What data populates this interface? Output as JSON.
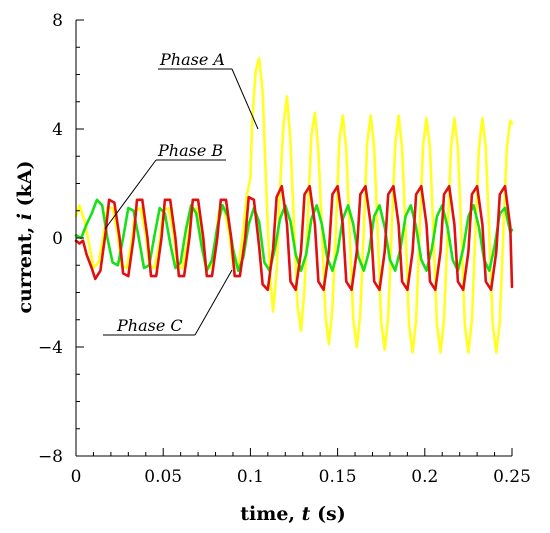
{
  "chart_data": {
    "type": "line",
    "title": "",
    "xlabel": {
      "prefix": "time, ",
      "var": "t",
      "suffix": " (s)"
    },
    "ylabel": {
      "prefix": "current, ",
      "var": "i",
      "suffix": " (kA)"
    },
    "xlim": [
      0,
      0.25
    ],
    "ylim": [
      -8,
      8
    ],
    "xticks": [
      0,
      0.05,
      0.1,
      0.15,
      0.2,
      0.25
    ],
    "xtick_labels": [
      "0",
      "0.05",
      "0.1",
      "0.15",
      "0.2",
      "0.25"
    ],
    "yticks": [
      -8,
      -4,
      0,
      4,
      8
    ],
    "ytick_labels": [
      "−8",
      "−4",
      "0",
      "4",
      "8"
    ],
    "grid": false,
    "legend": "none",
    "annotations": [
      {
        "text": "Phase A",
        "target_series": 0
      },
      {
        "text": "Phase B",
        "target_series": 1
      },
      {
        "text": "Phase C",
        "target_series": 2
      }
    ],
    "series": [
      {
        "name": "Phase A",
        "color": "#ffff22",
        "x": [
          0,
          0.002,
          0.005,
          0.008,
          0.01,
          0.013,
          0.016,
          0.018,
          0.021,
          0.024,
          0.026,
          0.029,
          0.032,
          0.034,
          0.037,
          0.04,
          0.042,
          0.045,
          0.048,
          0.05,
          0.053,
          0.056,
          0.058,
          0.061,
          0.064,
          0.066,
          0.069,
          0.072,
          0.074,
          0.077,
          0.08,
          0.082,
          0.085,
          0.088,
          0.09,
          0.093,
          0.096,
          0.098,
          0.1,
          0.101,
          0.103,
          0.105,
          0.107,
          0.109,
          0.111,
          0.113,
          0.115,
          0.117,
          0.119,
          0.121,
          0.123,
          0.125,
          0.127,
          0.129,
          0.131,
          0.133,
          0.135,
          0.137,
          0.139,
          0.141,
          0.143,
          0.145,
          0.147,
          0.149,
          0.151,
          0.153,
          0.155,
          0.157,
          0.159,
          0.161,
          0.163,
          0.165,
          0.167,
          0.169,
          0.171,
          0.173,
          0.175,
          0.177,
          0.179,
          0.181,
          0.183,
          0.185,
          0.187,
          0.189,
          0.191,
          0.193,
          0.195,
          0.197,
          0.199,
          0.201,
          0.203,
          0.205,
          0.207,
          0.209,
          0.211,
          0.213,
          0.215,
          0.217,
          0.219,
          0.221,
          0.223,
          0.225,
          0.227,
          0.229,
          0.231,
          0.233,
          0.235,
          0.237,
          0.239,
          0.241,
          0.243,
          0.245,
          0.247,
          0.249,
          0.25
        ],
        "y": [
          0.8,
          1.2,
          0.6,
          -0.4,
          -1.1,
          -0.9,
          0.2,
          1.1,
          1.1,
          0.1,
          -1.0,
          -1.1,
          -0.1,
          1.0,
          1.1,
          0.1,
          -1.0,
          -1.1,
          -0.1,
          1.0,
          1.1,
          0.1,
          -1.0,
          -1.1,
          -0.1,
          1.0,
          1.1,
          0.1,
          -1.0,
          -1.1,
          -0.1,
          1.0,
          1.1,
          0.1,
          -1.0,
          -1.1,
          0.3,
          1.6,
          2.2,
          4.2,
          6.1,
          6.6,
          5.4,
          2.0,
          -1.2,
          -2.7,
          -1.2,
          1.8,
          4.2,
          5.2,
          3.5,
          0.4,
          -2.5,
          -3.4,
          -1.9,
          1.0,
          3.8,
          4.6,
          3.2,
          0.3,
          -2.8,
          -3.9,
          -2.6,
          0.4,
          3.6,
          4.5,
          3.2,
          0.1,
          -3.0,
          -4.0,
          -2.8,
          0.3,
          3.5,
          4.5,
          3.3,
          0.2,
          -3.1,
          -4.1,
          -2.9,
          0.3,
          3.4,
          4.5,
          3.3,
          0.2,
          -3.2,
          -4.2,
          -3.0,
          0.2,
          3.4,
          4.4,
          3.3,
          0.1,
          -3.2,
          -4.2,
          -3.0,
          0.2,
          3.3,
          4.4,
          3.3,
          0.1,
          -3.2,
          -4.2,
          -3.0,
          0.2,
          3.3,
          4.4,
          3.3,
          0.1,
          -3.2,
          -4.2,
          -3.1,
          0.2,
          3.3,
          4.3,
          4.2
        ]
      },
      {
        "name": "Phase B",
        "color": "#18e018",
        "x": [
          0,
          0.003,
          0.006,
          0.009,
          0.012,
          0.015,
          0.018,
          0.021,
          0.024,
          0.027,
          0.03,
          0.033,
          0.036,
          0.039,
          0.042,
          0.045,
          0.048,
          0.051,
          0.054,
          0.057,
          0.06,
          0.063,
          0.066,
          0.069,
          0.072,
          0.075,
          0.078,
          0.081,
          0.084,
          0.087,
          0.09,
          0.093,
          0.096,
          0.099,
          0.102,
          0.105,
          0.108,
          0.111,
          0.114,
          0.117,
          0.12,
          0.123,
          0.126,
          0.129,
          0.132,
          0.135,
          0.138,
          0.141,
          0.144,
          0.147,
          0.15,
          0.153,
          0.156,
          0.159,
          0.162,
          0.165,
          0.168,
          0.171,
          0.174,
          0.177,
          0.18,
          0.183,
          0.186,
          0.189,
          0.192,
          0.195,
          0.198,
          0.201,
          0.204,
          0.207,
          0.21,
          0.213,
          0.216,
          0.219,
          0.222,
          0.225,
          0.228,
          0.231,
          0.234,
          0.237,
          0.24,
          0.243,
          0.246,
          0.249,
          0.25
        ],
        "y": [
          0.1,
          0.0,
          0.5,
          0.9,
          1.4,
          1.2,
          0.0,
          -0.9,
          -1.0,
          0.0,
          1.1,
          1.0,
          0.0,
          -1.1,
          -1.0,
          0.1,
          1.1,
          0.9,
          -0.2,
          -1.1,
          -0.9,
          0.3,
          1.2,
          0.9,
          -0.3,
          -1.2,
          -0.8,
          0.4,
          1.2,
          0.8,
          -0.4,
          -1.2,
          -0.7,
          0.5,
          1.1,
          0.6,
          -0.9,
          -1.2,
          -0.4,
          0.7,
          1.2,
          0.6,
          -0.6,
          -1.2,
          -0.6,
          0.7,
          1.2,
          0.5,
          -0.7,
          -1.2,
          -0.5,
          0.7,
          1.2,
          0.5,
          -0.7,
          -1.2,
          -0.5,
          0.8,
          1.2,
          0.4,
          -0.8,
          -1.2,
          -0.4,
          0.8,
          1.2,
          0.4,
          -0.8,
          -1.2,
          -0.4,
          0.8,
          1.2,
          0.4,
          -0.8,
          -1.2,
          -0.4,
          0.8,
          1.2,
          0.4,
          -0.8,
          -1.2,
          -0.3,
          0.9,
          1.1,
          0.2,
          0.3
        ]
      },
      {
        "name": "Phase C",
        "color": "#e01010",
        "x": [
          0,
          0.002,
          0.004,
          0.006,
          0.009,
          0.011,
          0.014,
          0.017,
          0.019,
          0.022,
          0.025,
          0.027,
          0.03,
          0.033,
          0.035,
          0.038,
          0.041,
          0.043,
          0.046,
          0.049,
          0.051,
          0.054,
          0.057,
          0.059,
          0.062,
          0.065,
          0.067,
          0.07,
          0.073,
          0.075,
          0.078,
          0.081,
          0.083,
          0.086,
          0.089,
          0.091,
          0.094,
          0.097,
          0.099,
          0.102,
          0.105,
          0.107,
          0.11,
          0.113,
          0.115,
          0.118,
          0.121,
          0.123,
          0.126,
          0.129,
          0.131,
          0.134,
          0.137,
          0.139,
          0.142,
          0.145,
          0.147,
          0.15,
          0.153,
          0.155,
          0.158,
          0.161,
          0.163,
          0.166,
          0.169,
          0.171,
          0.174,
          0.177,
          0.179,
          0.182,
          0.185,
          0.187,
          0.19,
          0.193,
          0.195,
          0.198,
          0.201,
          0.203,
          0.206,
          0.209,
          0.211,
          0.214,
          0.217,
          0.219,
          0.222,
          0.225,
          0.227,
          0.23,
          0.233,
          0.235,
          0.238,
          0.241,
          0.243,
          0.246,
          0.249,
          0.25
        ],
        "y": [
          -0.1,
          -0.2,
          -0.1,
          -0.6,
          -1.1,
          -1.5,
          -1.2,
          0.2,
          1.4,
          1.3,
          0.0,
          -1.3,
          -1.4,
          0.0,
          1.4,
          1.4,
          0.0,
          -1.4,
          -1.4,
          0.0,
          1.4,
          1.4,
          0.0,
          -1.4,
          -1.4,
          0.0,
          1.4,
          1.4,
          0.0,
          -1.4,
          -1.4,
          0.0,
          1.4,
          1.4,
          0.0,
          -1.4,
          -1.4,
          0.0,
          1.5,
          1.4,
          -0.3,
          -1.7,
          -1.9,
          -0.4,
          1.5,
          1.9,
          0.5,
          -1.6,
          -1.9,
          -0.5,
          1.6,
          1.9,
          0.5,
          -1.6,
          -1.9,
          -0.5,
          1.6,
          1.9,
          0.5,
          -1.6,
          -1.9,
          -0.5,
          1.6,
          1.9,
          0.5,
          -1.6,
          -1.9,
          -0.5,
          1.6,
          1.9,
          0.5,
          -1.6,
          -1.9,
          -0.5,
          1.6,
          1.9,
          0.5,
          -1.6,
          -1.9,
          -0.5,
          1.6,
          1.9,
          0.5,
          -1.6,
          -1.9,
          -0.5,
          1.6,
          1.9,
          0.5,
          -1.6,
          -1.9,
          -0.5,
          1.6,
          1.9,
          0.4,
          -1.8
        ]
      }
    ]
  }
}
